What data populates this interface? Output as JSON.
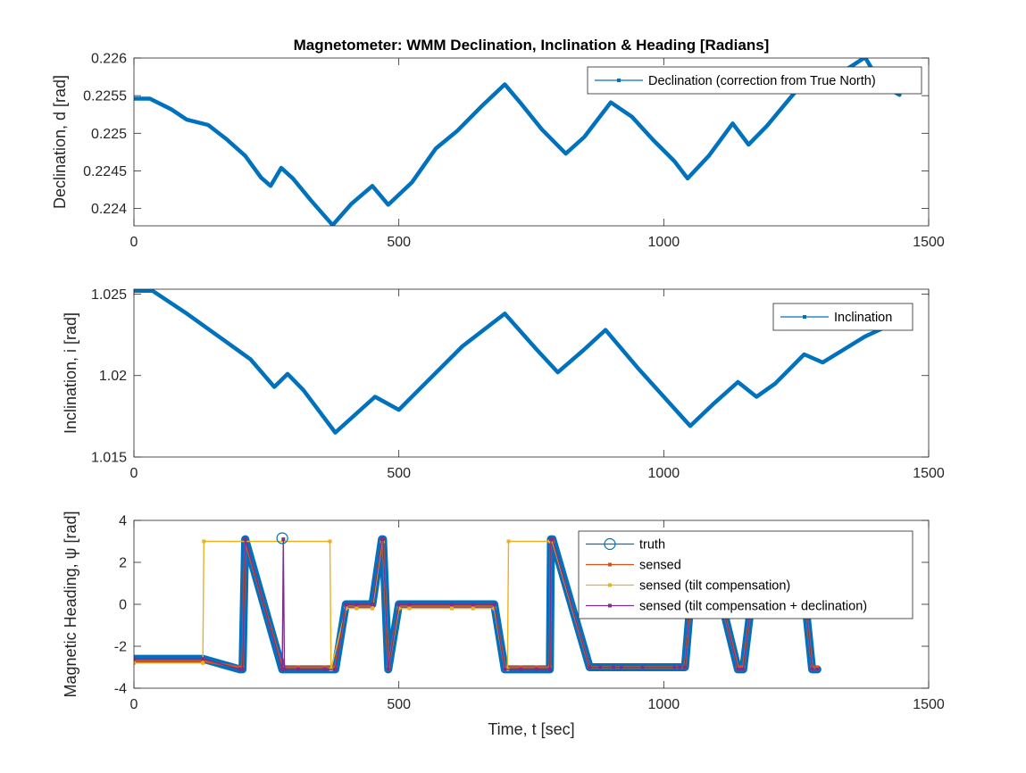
{
  "figure": {
    "title": "Magnetometer: WMM Declination, Inclination & Heading [Radians]"
  },
  "colors": {
    "blue": "#0072BD",
    "orange": "#D95319",
    "yellow": "#EDB120",
    "purple": "#7E2F8E",
    "axis": "#262626"
  },
  "chart_data": [
    {
      "type": "line",
      "title": "Magnetometer: WMM Declination, Inclination & Heading [Radians]",
      "xlabel": "",
      "ylabel": "Declination, d [rad]",
      "xlim": [
        0,
        1500
      ],
      "ylim": [
        0.22377,
        0.226
      ],
      "xticks": [
        0,
        500,
        1000,
        1500
      ],
      "xtick_labels": [
        "0",
        "500",
        "1000",
        "1500"
      ],
      "yticks": [
        0.224,
        0.2245,
        0.225,
        0.2255,
        0.226
      ],
      "ytick_labels": [
        "0.224",
        "0.2245",
        "0.225",
        "0.2255",
        "0.226"
      ],
      "legend_position": "top-right",
      "series": [
        {
          "name": "Declination (correction from True North)",
          "color": "#0072BD",
          "x": [
            0,
            30,
            70,
            100,
            140,
            175,
            210,
            240,
            258,
            278,
            300,
            335,
            375,
            410,
            450,
            480,
            525,
            570,
            610,
            655,
            700,
            730,
            770,
            815,
            850,
            900,
            940,
            980,
            1020,
            1045,
            1085,
            1130,
            1160,
            1195,
            1240,
            1285,
            1330,
            1380,
            1410,
            1445
          ],
          "y": [
            0.22546,
            0.22546,
            0.22532,
            0.22518,
            0.22511,
            0.22492,
            0.2247,
            0.22441,
            0.2243,
            0.22454,
            0.2244,
            0.2241,
            0.22378,
            0.22406,
            0.2243,
            0.22405,
            0.22435,
            0.2248,
            0.22503,
            0.22535,
            0.22565,
            0.2254,
            0.22505,
            0.22473,
            0.22495,
            0.22541,
            0.22522,
            0.22491,
            0.22463,
            0.2244,
            0.2247,
            0.22513,
            0.22485,
            0.2251,
            0.22548,
            0.22585,
            0.22578,
            0.22601,
            0.22565,
            0.22551
          ]
        }
      ]
    },
    {
      "type": "line",
      "title": "",
      "xlabel": "",
      "ylabel": "Inclination, i [rad]",
      "xlim": [
        0,
        1500
      ],
      "ylim": [
        1.015,
        1.0253
      ],
      "xticks": [
        0,
        500,
        1000,
        1500
      ],
      "xtick_labels": [
        "0",
        "500",
        "1000",
        "1500"
      ],
      "yticks": [
        1.015,
        1.02,
        1.025
      ],
      "ytick_labels": [
        "1.015",
        "1.02",
        "1.025"
      ],
      "legend_position": "top-right",
      "series": [
        {
          "name": "Inclination",
          "color": "#0072BD",
          "x": [
            0,
            35,
            100,
            160,
            220,
            265,
            290,
            320,
            380,
            455,
            500,
            540,
            620,
            700,
            760,
            800,
            850,
            890,
            950,
            1050,
            1095,
            1140,
            1175,
            1210,
            1265,
            1300,
            1340,
            1380,
            1420,
            1445
          ],
          "y": [
            1.0252,
            1.0252,
            1.0238,
            1.0224,
            1.021,
            1.0193,
            1.0201,
            1.0191,
            1.0165,
            1.0187,
            1.0179,
            1.0192,
            1.0218,
            1.0238,
            1.0216,
            1.0202,
            1.0216,
            1.0228,
            1.0205,
            1.0169,
            1.0183,
            1.0196,
            1.0187,
            1.0195,
            1.0213,
            1.0208,
            1.0216,
            1.0224,
            1.023,
            1.0233
          ]
        }
      ]
    },
    {
      "type": "line",
      "title": "",
      "xlabel": "Time, t [sec]",
      "ylabel": "Magnetic Heading, ψ [rad]",
      "xlim": [
        0,
        1500
      ],
      "ylim": [
        -4,
        4
      ],
      "xticks": [
        0,
        500,
        1000,
        1500
      ],
      "xtick_labels": [
        "0",
        "500",
        "1000",
        "1500"
      ],
      "yticks": [
        -4,
        -2,
        0,
        2,
        4
      ],
      "ytick_labels": [
        "-4",
        "-2",
        "0",
        "2",
        "4"
      ],
      "legend_position": "top-right",
      "series": [
        {
          "name": "truth",
          "color": "#0072BD",
          "x": [
            0,
            130,
            200,
            205,
            210,
            280,
            310,
            360,
            380,
            400,
            420,
            450,
            468,
            470,
            480,
            500,
            520,
            600,
            640,
            680,
            700,
            730,
            760,
            785,
            787,
            790,
            860,
            880,
            905,
            920,
            960,
            1020,
            1030,
            1040,
            1060,
            1080,
            1140,
            1145,
            1150,
            1180,
            1200,
            1240,
            1255,
            1280,
            1290
          ],
          "y": [
            -2.6,
            -2.6,
            -3.1,
            -3.1,
            3.1,
            -3.1,
            -3.1,
            -3.1,
            -3.1,
            0,
            0,
            0,
            3.1,
            3.1,
            -3.1,
            0,
            0,
            0,
            0,
            0,
            -3.1,
            -3.1,
            -3.1,
            -3.1,
            3.1,
            3.1,
            -3.0,
            -3.0,
            -3.0,
            -3.0,
            -3.0,
            -3.0,
            -3.0,
            -3.0,
            3.1,
            3.1,
            -3.1,
            -3.1,
            -3.1,
            3.1,
            3.1,
            3.1,
            3.1,
            -3.1,
            -3.1
          ]
        },
        {
          "name": "sensed",
          "color": "#D95319",
          "x": [
            0,
            130,
            200,
            205,
            210,
            280,
            310,
            360,
            380,
            400,
            420,
            450,
            468,
            470,
            480,
            500,
            520,
            600,
            640,
            680,
            700,
            730,
            760,
            785,
            787,
            790,
            860,
            880,
            905,
            920,
            960,
            1020,
            1030,
            1040,
            1060,
            1080,
            1140,
            1145,
            1150,
            1180,
            1200,
            1240,
            1255,
            1280,
            1290
          ],
          "y": [
            -2.7,
            -2.7,
            -3.0,
            -3.0,
            3.0,
            -3.0,
            -3.0,
            -3.0,
            -3.0,
            -0.1,
            -0.1,
            -0.1,
            3.0,
            3.0,
            -3.0,
            -0.1,
            -0.1,
            -0.1,
            -0.1,
            -0.1,
            -3.0,
            -3.0,
            -3.0,
            -3.0,
            3.0,
            3.0,
            -3.0,
            -3.0,
            -3.0,
            -3.0,
            -3.0,
            -3.0,
            -3.0,
            -3.0,
            3.0,
            3.0,
            -3.0,
            -3.0,
            -3.0,
            3.0,
            3.0,
            3.0,
            3.0,
            -3.0,
            -3.0
          ]
        },
        {
          "name": "sensed (tilt compensation)",
          "color": "#EDB120",
          "x": [
            0,
            130,
            132,
            370,
            372,
            400,
            420,
            450,
            468,
            470,
            480,
            500,
            520,
            600,
            640,
            680,
            700,
            705,
            707,
            785,
            787,
            790,
            860,
            880,
            905,
            920,
            960,
            1020,
            1030,
            1040,
            1060,
            1080,
            1140,
            1145,
            1150,
            1180,
            1200,
            1240,
            1255,
            1280,
            1290
          ],
          "y": [
            -2.8,
            -2.8,
            3.0,
            3.0,
            -3.1,
            -0.2,
            -0.2,
            -0.2,
            3.0,
            3.0,
            -3.1,
            -0.2,
            -0.2,
            -0.2,
            -0.2,
            -0.2,
            -3.1,
            -3.1,
            3.0,
            3.0,
            3.0,
            3.0,
            -3.0,
            -3.0,
            -3.0,
            -3.0,
            -3.0,
            -3.0,
            -3.0,
            -3.0,
            3.0,
            3.0,
            -3.1,
            -3.1,
            -3.1,
            3.0,
            3.0,
            3.0,
            3.0,
            -3.1,
            -3.1
          ]
        },
        {
          "name": "sensed (tilt compensation + declination)",
          "color": "#7E2F8E",
          "x": [
            0,
            130,
            200,
            205,
            210,
            280,
            282,
            284,
            310,
            360,
            380,
            400,
            420,
            450,
            468,
            470,
            480,
            500,
            520,
            600,
            640,
            680,
            700,
            730,
            760,
            785,
            787,
            790,
            860,
            880,
            905,
            920,
            960,
            1020,
            1030,
            1040,
            1060,
            1080,
            1140,
            1145,
            1150,
            1180,
            1200,
            1240,
            1255,
            1280,
            1290
          ],
          "y": [
            -2.6,
            -2.6,
            -3.1,
            -3.1,
            3.1,
            -3.1,
            3.1,
            -3.1,
            -3.1,
            -3.1,
            -3.1,
            -0.0,
            -0.0,
            -0.0,
            3.1,
            3.1,
            -3.1,
            -0.0,
            -0.0,
            -0.0,
            -0.0,
            -0.0,
            -3.1,
            -3.1,
            -3.1,
            -3.1,
            3.1,
            3.1,
            -3.0,
            -3.0,
            -3.0,
            -3.0,
            -3.0,
            -3.0,
            -3.0,
            -3.0,
            3.1,
            3.1,
            -3.1,
            -3.1,
            -3.1,
            3.1,
            3.1,
            3.1,
            3.1,
            -3.1,
            -3.1
          ]
        }
      ]
    }
  ]
}
